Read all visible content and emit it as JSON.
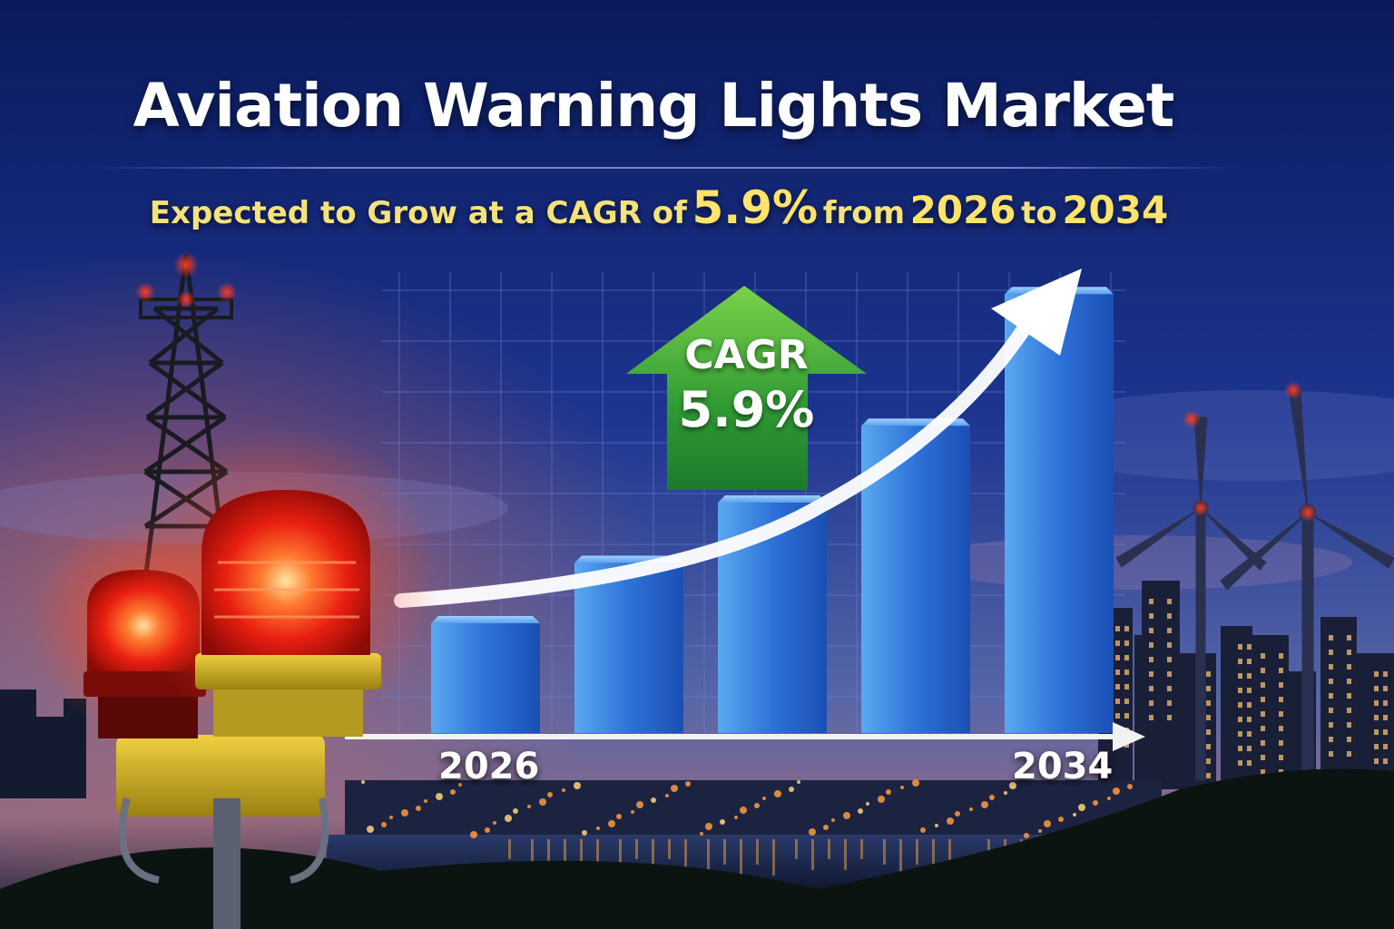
{
  "header": {
    "title": "Aviation Warning Lights Market",
    "subtitle_part1": "Expected to Grow at a CAGR of",
    "subtitle_rate": "5.9%",
    "subtitle_part2": "from",
    "subtitle_start": "2026",
    "subtitle_to": "to",
    "subtitle_end": "2034"
  },
  "badge": {
    "line1": "CAGR",
    "line2": "5.9%"
  },
  "colors": {
    "sky_top": "#0a1a5c",
    "sky_bottom": "#4a5ea8",
    "accent_yellow": "#ffe36a",
    "badge_green": "#3fae3a",
    "bar_blue": "#2d6fd6",
    "beacon_red": "#ff2a10"
  },
  "chart_data": {
    "type": "bar",
    "title": "Aviation Warning Lights Market",
    "categories": [
      "2026",
      "",
      "",
      "",
      "2034"
    ],
    "values": [
      1.0,
      1.55,
      2.1,
      2.8,
      4.0
    ],
    "ylim": [
      0,
      4.2
    ],
    "xlabel": "",
    "ylabel": "",
    "cagr": "5.9%",
    "grid": true,
    "trend_arrow": true
  }
}
